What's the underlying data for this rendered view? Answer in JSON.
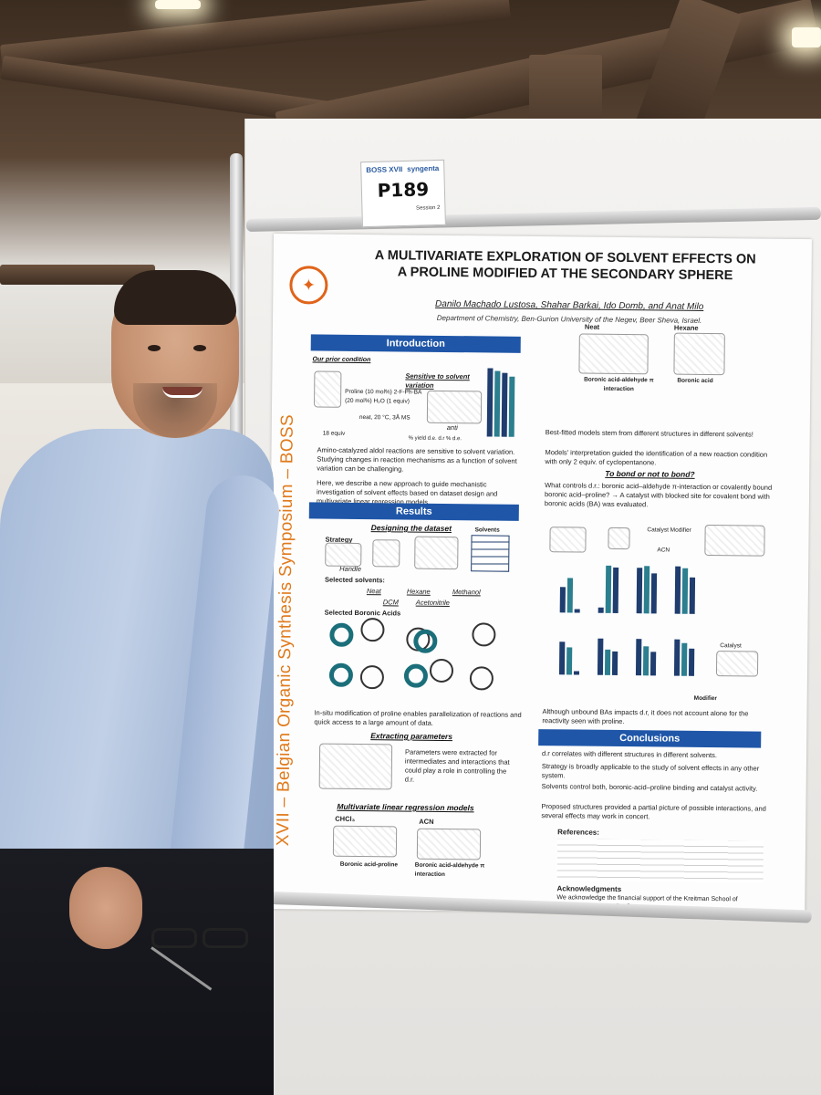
{
  "badge": {
    "brand_left": "BOSS XVII",
    "brand_right": "syngenta",
    "code": "P189",
    "session": "Session 2"
  },
  "poster": {
    "sidebar_text": "XVII – Belgian Organic Synthesis Symposium – BOSS",
    "title_line1": "A MULTIVARIATE EXPLORATION OF SOLVENT EFFECTS ON",
    "title_line2": "A PROLINE MODIFIED AT THE SECONDARY SPHERE",
    "authors": "Danilo Machado Lustosa, Shahar Barkai, Ido Domb, and Anat Milo",
    "department": "Department of Chemistry, Ben-Gurion University of the Negev, Beer Sheva, Israel.",
    "sections": {
      "introduction": "Introduction",
      "results": "Results",
      "conclusions": "Conclusions"
    },
    "intro": {
      "prior": "Our prior condition",
      "sensitive": "Sensitive to solvent variation",
      "conditions": "Proline (10 mol%) 2-F-Ph-BA (20 mol%) H₂O (1 equiv)",
      "conditions2": "neat, 20 °C, 3Å MS",
      "equiv": "18 equiv",
      "anti": "anti",
      "legend": "% yield  d.e.  d.r  % d.e.",
      "bullet1": "Amino-catalyzed aldol reactions are sensitive to solvent variation. Studying changes in reaction mechanisms as a function of solvent variation can be challenging.",
      "bullet2": "Here, we describe a new approach to guide mechanistic investigation of solvent effects based on dataset design and multivariate linear regression models."
    },
    "results": {
      "designing": "Designing the dataset",
      "strategy": "Strategy",
      "handle": "Handle",
      "solvents_box": "Solvents",
      "selected_solvents": "Selected solvents:",
      "solvents": [
        "Neat",
        "Hexane",
        "Methanol",
        "DCM",
        "Acetonitrile"
      ],
      "selected_ba": "Selected Boronic Acids",
      "insitu": "In-situ modification of proline enables parallelization of reactions and quick access to a large amount of data.",
      "extracting": "Extracting parameters",
      "extract_text": "Parameters were extracted for intermediates and interactions that could play a role in controlling the d.r.",
      "mlr": "Multivariate linear regression models",
      "chcl3": "CHCl₃",
      "acn": "ACN",
      "model1_label": "Boronic acid-proline",
      "model2_label": "Boronic acid-aldehyde π interaction"
    },
    "right": {
      "neat": "Neat",
      "hexane": "Hexane",
      "ba_aldehyde": "Boronic acid-aldehyde π interaction",
      "boronic_acid": "Boronic acid",
      "bullet1": "Best-fitted models stem from different structures in different solvents!",
      "bullet2": "Models' interpretation guided the identification of a new reaction condition with only 2 equiv. of cyclopentanone.",
      "to_bond": "To bond or not to bond?",
      "bullet3": "What controls d.r.: boronic acid–aldehyde π-interaction or covalently bound boronic acid–proline? → A catalyst with blocked site for covalent bond with boronic acids (BA) was evaluated.",
      "catalyst_modifier": "Catalyst Modifier",
      "acn2": "ACN",
      "catalyst": "Catalyst",
      "modifier": "Modifier",
      "bullet4": "Although unbound BAs impacts d.r, it does not account alone for the reactivity seen with proline."
    },
    "conclusions": {
      "c1": "d.r correlates with different structures in different solvents.",
      "c2": "Strategy is broadly applicable to the study of solvent effects in any other system.",
      "c3": "Solvents control both, boronic-acid–proline binding and catalyst activity.",
      "c4": "Proposed structures provided a partial picture of possible interactions, and several effects may work in concert."
    },
    "references_label": "References:",
    "acknowledgments_label": "Acknowledgments",
    "acknowledgments_text": "We acknowledge the financial support of the Kreitman School of Advanced Graduate Studies"
  }
}
